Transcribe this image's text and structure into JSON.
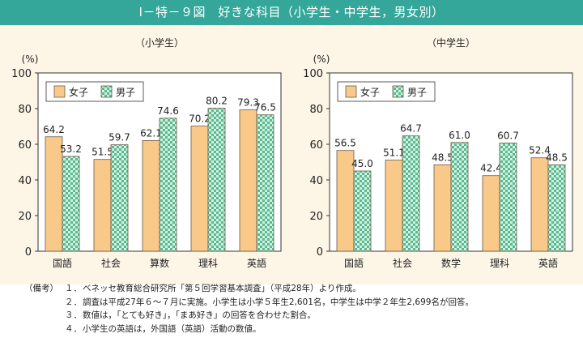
{
  "title": "Ⅰ－特－９図　好きな科目（小学生・中学生，男女別）",
  "colors": {
    "title_bar": "#35a79a",
    "panel_bg": "#fdf6e6",
    "girls_fill": "#f9c98a",
    "boys_fill": "#d6efe3",
    "boys_check": "#56bb8f",
    "bar_stroke": "#6b5a43"
  },
  "chart_data": [
    {
      "type": "bar",
      "title": "（小学生）",
      "ylabel": "(%)",
      "ylim": [
        0,
        100
      ],
      "yticks": [
        0,
        20,
        40,
        60,
        80,
        100
      ],
      "categories": [
        "国語",
        "社会",
        "算数",
        "理科",
        "英語"
      ],
      "legend_position": "top-left",
      "series": [
        {
          "name": "女子",
          "values": [
            64.2,
            51.5,
            62.1,
            70.2,
            79.3
          ]
        },
        {
          "name": "男子",
          "values": [
            53.2,
            59.7,
            74.6,
            80.2,
            76.5
          ]
        }
      ]
    },
    {
      "type": "bar",
      "title": "（中学生）",
      "ylabel": "(%)",
      "ylim": [
        0,
        100
      ],
      "yticks": [
        0,
        20,
        40,
        60,
        80,
        100
      ],
      "categories": [
        "国語",
        "社会",
        "数学",
        "理科",
        "英語"
      ],
      "legend_position": "top-left",
      "series": [
        {
          "name": "女子",
          "values": [
            56.5,
            51.1,
            48.5,
            42.4,
            52.4
          ]
        },
        {
          "name": "男子",
          "values": [
            45.0,
            64.7,
            61.0,
            60.7,
            48.5
          ]
        }
      ]
    }
  ],
  "notes": {
    "label": "（備考）",
    "items": [
      {
        "num": "１．",
        "text": "ベネッセ教育総合研究所「第５回学習基本調査」（平成28年）より作成。"
      },
      {
        "num": "２．",
        "text": "調査は平成27年６～７月に実施。小学生は小学５年生2,601名，中学生は中学２年生2,699名が回答。"
      },
      {
        "num": "３．",
        "text": "数値は，「とても好き」，「まあ好き」の回答を合わせた割合。"
      },
      {
        "num": "４．",
        "text": "小学生の英語は，外国語（英語）活動の数値。"
      }
    ]
  }
}
